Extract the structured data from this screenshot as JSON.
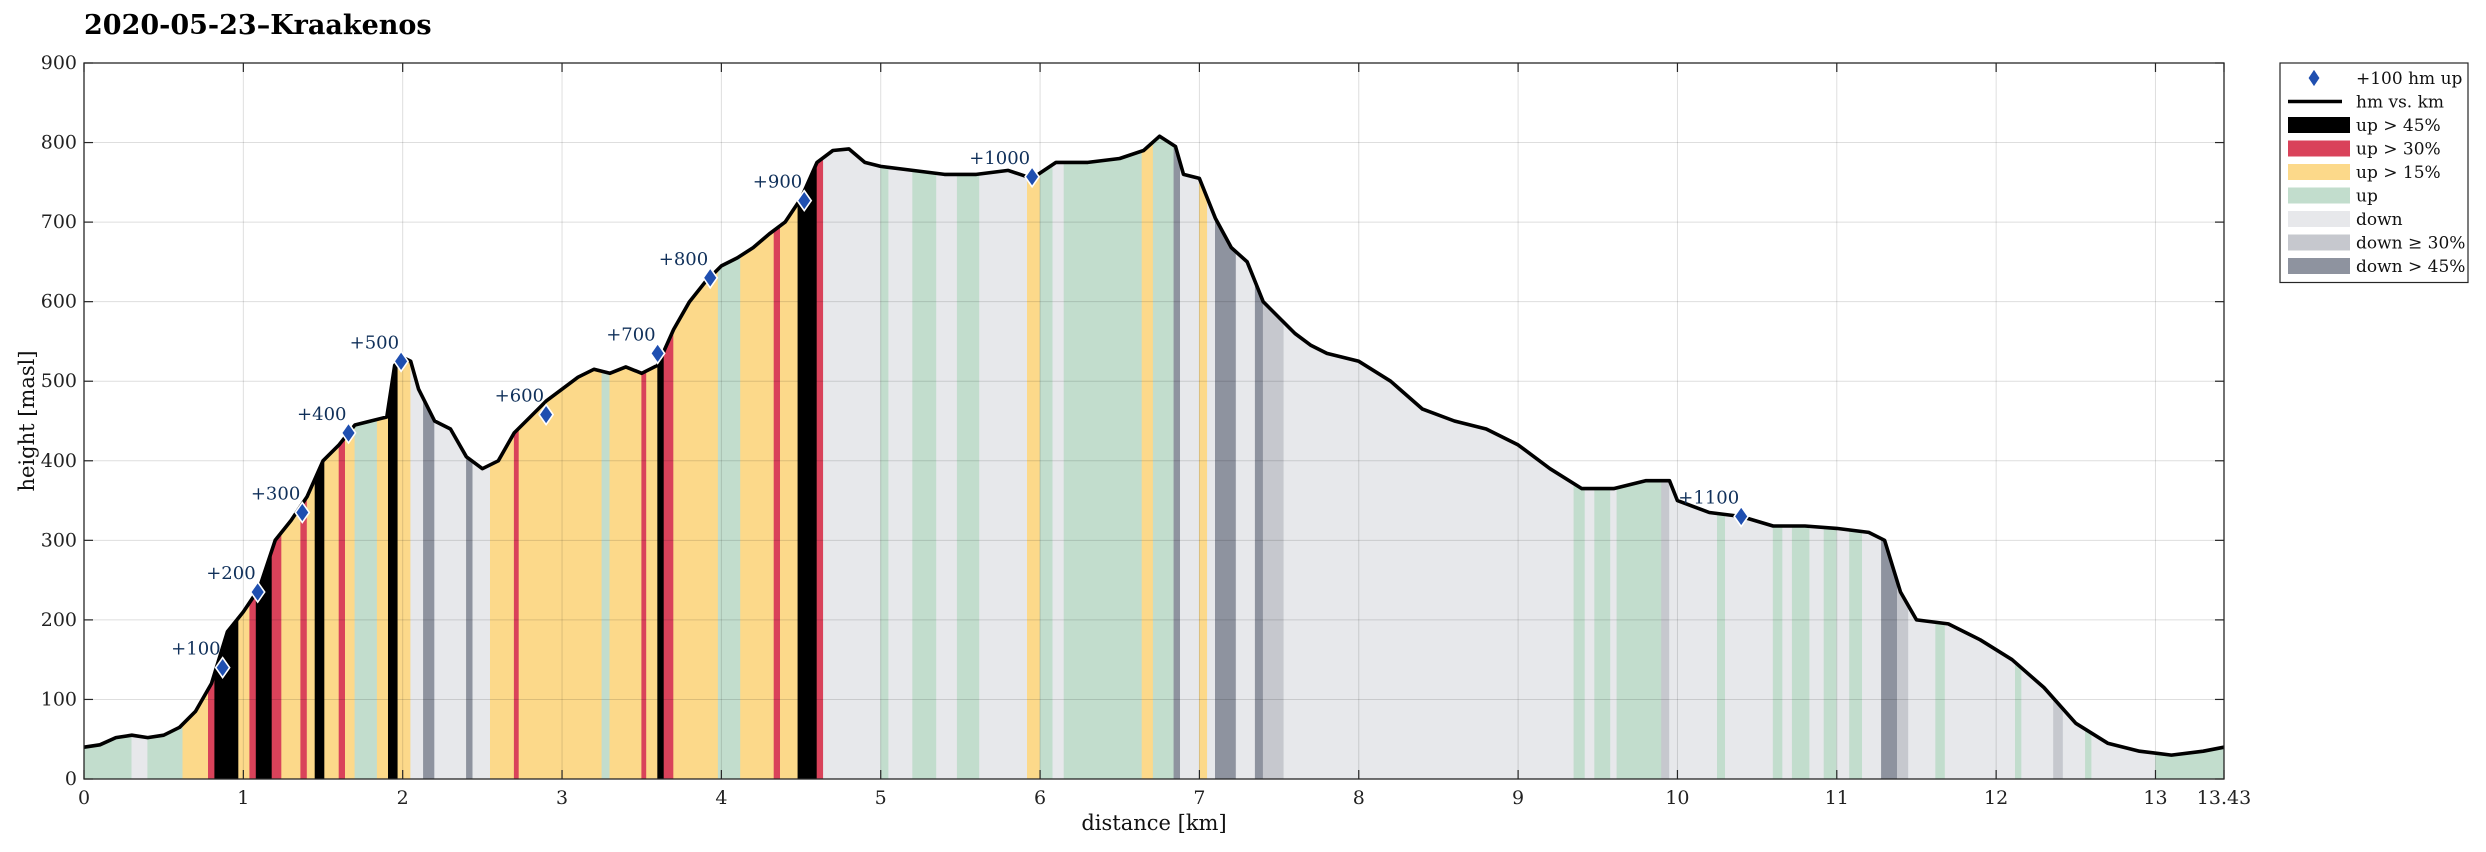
{
  "chart_data": {
    "type": "area",
    "title": "2020-05-23–Kraakenos",
    "xlabel": "distance [km]",
    "ylabel": "height [masl]",
    "xlim": [
      0,
      13.43
    ],
    "ylim": [
      0,
      900
    ],
    "x_ticks": [
      "0",
      "1",
      "2",
      "3",
      "4",
      "5",
      "6",
      "7",
      "8",
      "9",
      "10",
      "11",
      "12",
      "13",
      "13.43"
    ],
    "x_tick_values": [
      0,
      1,
      2,
      3,
      4,
      5,
      6,
      7,
      8,
      9,
      10,
      11,
      12,
      13,
      13.43
    ],
    "y_ticks": [
      "0",
      "100",
      "200",
      "300",
      "400",
      "500",
      "600",
      "700",
      "800",
      "900"
    ],
    "y_tick_values": [
      0,
      100,
      200,
      300,
      400,
      500,
      600,
      700,
      800,
      900
    ],
    "grid": true,
    "legend_position": "outside-right-top",
    "legend": [
      {
        "key": "marker",
        "label": "+100 hm up",
        "color": "#1f4fb0"
      },
      {
        "key": "line",
        "label": "hm vs. km",
        "color": "#000000"
      },
      {
        "key": "up45",
        "label": "up > 45%",
        "color": "#000000"
      },
      {
        "key": "up30",
        "label": "up > 30%",
        "color": "#d9425a"
      },
      {
        "key": "up15",
        "label": "up > 15%",
        "color": "#fcd98a"
      },
      {
        "key": "up",
        "label": "up",
        "color": "#c2ddcd"
      },
      {
        "key": "down",
        "label": "down",
        "color": "#e7e8eb"
      },
      {
        "key": "down30",
        "label": "down ≥ 30%",
        "color": "#c6c8ce"
      },
      {
        "key": "down45",
        "label": "down > 45%",
        "color": "#8e939f"
      }
    ],
    "profile": {
      "x": [
        0,
        0.1,
        0.2,
        0.3,
        0.4,
        0.5,
        0.6,
        0.7,
        0.8,
        0.9,
        1.0,
        1.1,
        1.2,
        1.3,
        1.4,
        1.5,
        1.6,
        1.7,
        1.8,
        1.9,
        1.95,
        2.0,
        2.05,
        2.1,
        2.2,
        2.3,
        2.4,
        2.5,
        2.6,
        2.7,
        2.8,
        2.9,
        3.0,
        3.1,
        3.2,
        3.3,
        3.4,
        3.5,
        3.6,
        3.7,
        3.8,
        3.9,
        4.0,
        4.1,
        4.2,
        4.3,
        4.4,
        4.5,
        4.6,
        4.7,
        4.8,
        4.9,
        5.0,
        5.2,
        5.4,
        5.6,
        5.8,
        5.95,
        6.1,
        6.3,
        6.5,
        6.65,
        6.75,
        6.85,
        6.9,
        7.0,
        7.1,
        7.2,
        7.3,
        7.4,
        7.5,
        7.6,
        7.7,
        7.8,
        8.0,
        8.2,
        8.4,
        8.6,
        8.8,
        9.0,
        9.2,
        9.4,
        9.6,
        9.8,
        9.95,
        10.0,
        10.2,
        10.4,
        10.6,
        10.8,
        11.0,
        11.2,
        11.3,
        11.4,
        11.5,
        11.7,
        11.9,
        12.1,
        12.3,
        12.5,
        12.7,
        12.9,
        13.1,
        13.3,
        13.43
      ],
      "y": [
        40,
        43,
        52,
        55,
        52,
        55,
        65,
        85,
        120,
        185,
        210,
        240,
        300,
        325,
        355,
        400,
        420,
        445,
        450,
        455,
        520,
        530,
        525,
        490,
        450,
        440,
        405,
        390,
        400,
        435,
        455,
        475,
        490,
        505,
        515,
        510,
        518,
        510,
        520,
        565,
        600,
        625,
        645,
        655,
        668,
        685,
        700,
        730,
        775,
        790,
        792,
        775,
        770,
        765,
        760,
        760,
        765,
        755,
        775,
        775,
        780,
        790,
        808,
        795,
        760,
        755,
        705,
        668,
        650,
        600,
        580,
        560,
        545,
        535,
        525,
        500,
        465,
        450,
        440,
        420,
        390,
        365,
        365,
        375,
        375,
        350,
        335,
        330,
        318,
        318,
        315,
        310,
        300,
        235,
        200,
        195,
        175,
        150,
        115,
        70,
        45,
        35,
        30,
        35,
        40
      ]
    },
    "segments": [
      {
        "from": 0.0,
        "to": 0.3,
        "grade": "up"
      },
      {
        "from": 0.3,
        "to": 0.4,
        "grade": "down"
      },
      {
        "from": 0.4,
        "to": 0.5,
        "grade": "up"
      },
      {
        "from": 0.5,
        "to": 0.62,
        "grade": "up"
      },
      {
        "from": 0.62,
        "to": 0.78,
        "grade": "up15"
      },
      {
        "from": 0.78,
        "to": 0.82,
        "grade": "up30"
      },
      {
        "from": 0.82,
        "to": 0.97,
        "grade": "up45"
      },
      {
        "from": 0.97,
        "to": 1.04,
        "grade": "up15"
      },
      {
        "from": 1.04,
        "to": 1.08,
        "grade": "up30"
      },
      {
        "from": 1.08,
        "to": 1.18,
        "grade": "up45"
      },
      {
        "from": 1.18,
        "to": 1.24,
        "grade": "up30"
      },
      {
        "from": 1.24,
        "to": 1.36,
        "grade": "up15"
      },
      {
        "from": 1.36,
        "to": 1.4,
        "grade": "up30"
      },
      {
        "from": 1.4,
        "to": 1.45,
        "grade": "up15"
      },
      {
        "from": 1.45,
        "to": 1.51,
        "grade": "up45"
      },
      {
        "from": 1.51,
        "to": 1.6,
        "grade": "up15"
      },
      {
        "from": 1.6,
        "to": 1.64,
        "grade": "up30"
      },
      {
        "from": 1.64,
        "to": 1.7,
        "grade": "up15"
      },
      {
        "from": 1.7,
        "to": 1.84,
        "grade": "up"
      },
      {
        "from": 1.84,
        "to": 1.91,
        "grade": "up15"
      },
      {
        "from": 1.91,
        "to": 1.97,
        "grade": "up45"
      },
      {
        "from": 1.97,
        "to": 2.05,
        "grade": "up15"
      },
      {
        "from": 2.05,
        "to": 2.13,
        "grade": "down"
      },
      {
        "from": 2.13,
        "to": 2.2,
        "grade": "down45"
      },
      {
        "from": 2.2,
        "to": 2.4,
        "grade": "down"
      },
      {
        "from": 2.4,
        "to": 2.44,
        "grade": "down45"
      },
      {
        "from": 2.44,
        "to": 2.55,
        "grade": "down"
      },
      {
        "from": 2.55,
        "to": 2.7,
        "grade": "up15"
      },
      {
        "from": 2.7,
        "to": 2.73,
        "grade": "up30"
      },
      {
        "from": 2.73,
        "to": 3.25,
        "grade": "up15"
      },
      {
        "from": 3.25,
        "to": 3.3,
        "grade": "up"
      },
      {
        "from": 3.3,
        "to": 3.5,
        "grade": "up15"
      },
      {
        "from": 3.5,
        "to": 3.53,
        "grade": "up30"
      },
      {
        "from": 3.53,
        "to": 3.6,
        "grade": "up15"
      },
      {
        "from": 3.6,
        "to": 3.64,
        "grade": "up45"
      },
      {
        "from": 3.64,
        "to": 3.7,
        "grade": "up30"
      },
      {
        "from": 3.7,
        "to": 3.98,
        "grade": "up15"
      },
      {
        "from": 3.98,
        "to": 4.12,
        "grade": "up"
      },
      {
        "from": 4.12,
        "to": 4.33,
        "grade": "up15"
      },
      {
        "from": 4.33,
        "to": 4.37,
        "grade": "up30"
      },
      {
        "from": 4.37,
        "to": 4.48,
        "grade": "up15"
      },
      {
        "from": 4.48,
        "to": 4.6,
        "grade": "up45"
      },
      {
        "from": 4.6,
        "to": 4.64,
        "grade": "up30"
      },
      {
        "from": 4.64,
        "to": 5.0,
        "grade": "down"
      },
      {
        "from": 5.0,
        "to": 5.05,
        "grade": "up"
      },
      {
        "from": 5.05,
        "to": 5.2,
        "grade": "down"
      },
      {
        "from": 5.2,
        "to": 5.35,
        "grade": "up"
      },
      {
        "from": 5.35,
        "to": 5.48,
        "grade": "down"
      },
      {
        "from": 5.48,
        "to": 5.62,
        "grade": "up"
      },
      {
        "from": 5.62,
        "to": 5.92,
        "grade": "down"
      },
      {
        "from": 5.92,
        "to": 6.0,
        "grade": "up15"
      },
      {
        "from": 6.0,
        "to": 6.08,
        "grade": "up"
      },
      {
        "from": 6.08,
        "to": 6.15,
        "grade": "down"
      },
      {
        "from": 6.15,
        "to": 6.48,
        "grade": "up"
      },
      {
        "from": 6.48,
        "to": 6.64,
        "grade": "up"
      },
      {
        "from": 6.64,
        "to": 6.71,
        "grade": "up15"
      },
      {
        "from": 6.71,
        "to": 6.84,
        "grade": "up"
      },
      {
        "from": 6.84,
        "to": 6.88,
        "grade": "down45"
      },
      {
        "from": 6.88,
        "to": 7.0,
        "grade": "down"
      },
      {
        "from": 7.0,
        "to": 7.05,
        "grade": "up15"
      },
      {
        "from": 7.05,
        "to": 7.1,
        "grade": "down"
      },
      {
        "from": 7.1,
        "to": 7.23,
        "grade": "down45"
      },
      {
        "from": 7.23,
        "to": 7.35,
        "grade": "down"
      },
      {
        "from": 7.35,
        "to": 7.4,
        "grade": "down45"
      },
      {
        "from": 7.4,
        "to": 7.53,
        "grade": "down30"
      },
      {
        "from": 7.53,
        "to": 9.35,
        "grade": "down"
      },
      {
        "from": 9.35,
        "to": 9.42,
        "grade": "up"
      },
      {
        "from": 9.42,
        "to": 9.48,
        "grade": "down"
      },
      {
        "from": 9.48,
        "to": 9.58,
        "grade": "up"
      },
      {
        "from": 9.58,
        "to": 9.62,
        "grade": "down"
      },
      {
        "from": 9.62,
        "to": 9.9,
        "grade": "up"
      },
      {
        "from": 9.9,
        "to": 9.95,
        "grade": "down30"
      },
      {
        "from": 9.95,
        "to": 10.25,
        "grade": "down"
      },
      {
        "from": 10.25,
        "to": 10.3,
        "grade": "up"
      },
      {
        "from": 10.3,
        "to": 10.6,
        "grade": "down"
      },
      {
        "from": 10.6,
        "to": 10.66,
        "grade": "up"
      },
      {
        "from": 10.66,
        "to": 10.72,
        "grade": "down"
      },
      {
        "from": 10.72,
        "to": 10.83,
        "grade": "up"
      },
      {
        "from": 10.83,
        "to": 10.92,
        "grade": "down"
      },
      {
        "from": 10.92,
        "to": 11.0,
        "grade": "up"
      },
      {
        "from": 11.0,
        "to": 11.08,
        "grade": "down"
      },
      {
        "from": 11.08,
        "to": 11.16,
        "grade": "up"
      },
      {
        "from": 11.16,
        "to": 11.28,
        "grade": "down"
      },
      {
        "from": 11.28,
        "to": 11.38,
        "grade": "down45"
      },
      {
        "from": 11.38,
        "to": 11.45,
        "grade": "down30"
      },
      {
        "from": 11.45,
        "to": 11.62,
        "grade": "down"
      },
      {
        "from": 11.62,
        "to": 11.68,
        "grade": "up"
      },
      {
        "from": 11.68,
        "to": 12.12,
        "grade": "down"
      },
      {
        "from": 12.12,
        "to": 12.16,
        "grade": "up"
      },
      {
        "from": 12.16,
        "to": 12.36,
        "grade": "down"
      },
      {
        "from": 12.36,
        "to": 12.42,
        "grade": "down30"
      },
      {
        "from": 12.42,
        "to": 12.56,
        "grade": "down"
      },
      {
        "from": 12.56,
        "to": 12.6,
        "grade": "up"
      },
      {
        "from": 12.6,
        "to": 13.0,
        "grade": "down"
      },
      {
        "from": 13.0,
        "to": 13.43,
        "grade": "up"
      }
    ],
    "milestones": [
      {
        "label": "+100",
        "x": 0.87,
        "y": 140
      },
      {
        "label": "+200",
        "x": 1.09,
        "y": 235
      },
      {
        "label": "+300",
        "x": 1.37,
        "y": 335
      },
      {
        "label": "+400",
        "x": 1.66,
        "y": 435
      },
      {
        "label": "+500",
        "x": 1.99,
        "y": 525
      },
      {
        "label": "+600",
        "x": 2.9,
        "y": 458
      },
      {
        "label": "+700",
        "x": 3.6,
        "y": 535
      },
      {
        "label": "+800",
        "x": 3.93,
        "y": 630
      },
      {
        "label": "+900",
        "x": 4.52,
        "y": 727
      },
      {
        "label": "+1000",
        "x": 5.95,
        "y": 757
      },
      {
        "label": "+1100",
        "x": 10.4,
        "y": 330
      }
    ]
  }
}
